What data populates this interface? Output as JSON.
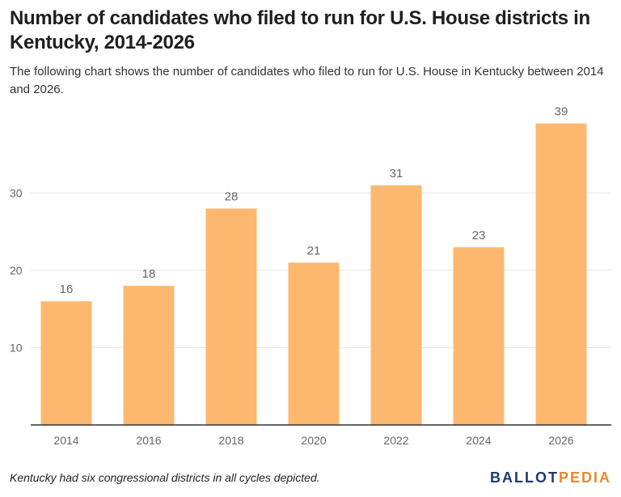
{
  "header": {
    "title": "Number of candidates who filed to run for U.S. House districts in Kentucky, 2014-2026",
    "subtitle": "The following chart shows the number of candidates who filed to run for U.S. House in Kentucky between 2014 and 2026."
  },
  "footer": {
    "note": "Kentucky had six congressional districts in all cycles depicted.",
    "logo_part1": "BALLOT",
    "logo_part2": "PEDIA"
  },
  "colors": {
    "bar": "#ffb870",
    "grid": "#e6e6e6",
    "axis": "#333333",
    "tick_label": "#666666",
    "logo_primary": "#1c3d6e",
    "logo_accent": "#e58a2c"
  },
  "chart_data": {
    "type": "bar",
    "title": "Number of candidates who filed to run for U.S. House districts in Kentucky, 2014-2026",
    "subtitle": "The following chart shows the number of candidates who filed to run for U.S. House in Kentucky between 2014 and 2026.",
    "xlabel": "",
    "ylabel": "",
    "categories": [
      "2014",
      "2016",
      "2018",
      "2020",
      "2022",
      "2024",
      "2026"
    ],
    "values": [
      16,
      18,
      28,
      21,
      31,
      23,
      39
    ],
    "data_labels": [
      "16",
      "18",
      "28",
      "21",
      "31",
      "23",
      "39"
    ],
    "ylim": [
      0,
      40
    ],
    "yticks": [
      10,
      20,
      30
    ],
    "ytick_labels": [
      "10",
      "20",
      "30"
    ],
    "grid": true,
    "legend": "none"
  }
}
